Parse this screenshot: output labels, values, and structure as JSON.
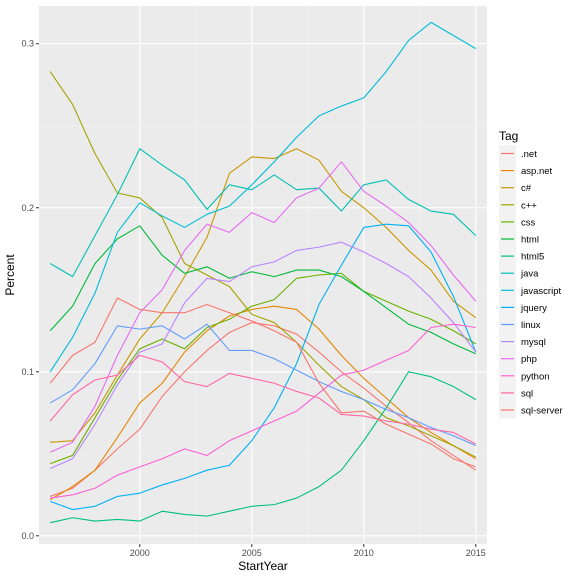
{
  "chart_data": {
    "type": "line",
    "xlabel": "StartYear",
    "ylabel": "Percent",
    "legend_title": "Tag",
    "legend_position": "right",
    "grid": true,
    "background": "#EBEBEB",
    "xlim": [
      1995.5,
      2015.5
    ],
    "ylim": [
      -0.005,
      0.323
    ],
    "x_ticks": [
      2000,
      2005,
      2010,
      2015
    ],
    "x_tick_labels": [
      "2000",
      "2005",
      "2010",
      "2015"
    ],
    "y_ticks": [
      0.0,
      0.1,
      0.2,
      0.3
    ],
    "y_tick_labels": [
      "0.0",
      "0.1",
      "0.2",
      "0.3"
    ],
    "x": [
      1996,
      1997,
      1998,
      1999,
      2000,
      2001,
      2002,
      2003,
      2004,
      2005,
      2006,
      2007,
      2008,
      2009,
      2010,
      2011,
      2012,
      2013,
      2014,
      2015
    ],
    "series": [
      {
        "name": ".net",
        "color": "#F8766D",
        "values": [
          0.024,
          0.029,
          0.04,
          0.053,
          0.065,
          0.085,
          0.1,
          0.113,
          0.124,
          0.13,
          0.128,
          0.123,
          0.112,
          0.1,
          0.09,
          0.079,
          0.069,
          0.058,
          0.049,
          0.04
        ]
      },
      {
        "name": "asp.net",
        "color": "#E58700",
        "values": [
          0.022,
          0.03,
          0.04,
          0.06,
          0.081,
          0.093,
          0.112,
          0.125,
          0.134,
          0.138,
          0.14,
          0.138,
          0.126,
          0.11,
          0.096,
          0.084,
          0.072,
          0.063,
          0.055,
          0.047
        ]
      },
      {
        "name": "c#",
        "color": "#C99800",
        "values": [
          0.057,
          0.058,
          0.075,
          0.098,
          0.12,
          0.136,
          0.158,
          0.182,
          0.221,
          0.231,
          0.23,
          0.236,
          0.229,
          0.21,
          0.2,
          0.188,
          0.174,
          0.162,
          0.143,
          0.133
        ]
      },
      {
        "name": "c++",
        "color": "#A3A500",
        "values": [
          0.283,
          0.263,
          0.233,
          0.209,
          0.206,
          0.194,
          0.166,
          0.159,
          0.152,
          0.135,
          0.13,
          0.118,
          0.104,
          0.091,
          0.083,
          0.072,
          0.067,
          0.061,
          0.055,
          0.048
        ]
      },
      {
        "name": "css",
        "color": "#6BB100",
        "values": [
          0.044,
          0.049,
          0.072,
          0.095,
          0.114,
          0.12,
          0.114,
          0.127,
          0.132,
          0.14,
          0.144,
          0.157,
          0.159,
          0.16,
          0.149,
          0.143,
          0.137,
          0.132,
          0.125,
          0.117
        ]
      },
      {
        "name": "html",
        "color": "#00BA38",
        "values": [
          0.125,
          0.14,
          0.166,
          0.181,
          0.189,
          0.171,
          0.16,
          0.164,
          0.157,
          0.161,
          0.158,
          0.162,
          0.162,
          0.158,
          0.149,
          0.139,
          0.129,
          0.124,
          0.117,
          0.111
        ]
      },
      {
        "name": "html5",
        "color": "#00BF7D",
        "values": [
          0.008,
          0.011,
          0.009,
          0.01,
          0.009,
          0.015,
          0.013,
          0.012,
          0.015,
          0.018,
          0.019,
          0.023,
          0.03,
          0.04,
          0.058,
          0.078,
          0.1,
          0.097,
          0.091,
          0.083
        ]
      },
      {
        "name": "java",
        "color": "#00C0B4",
        "values": [
          0.166,
          0.158,
          0.183,
          0.208,
          0.236,
          0.226,
          0.217,
          0.199,
          0.214,
          0.211,
          0.22,
          0.211,
          0.212,
          0.198,
          0.214,
          0.217,
          0.205,
          0.198,
          0.196,
          0.183
        ]
      },
      {
        "name": "javascript",
        "color": "#00BCD8",
        "values": [
          0.1,
          0.121,
          0.148,
          0.185,
          0.203,
          0.195,
          0.188,
          0.196,
          0.201,
          0.214,
          0.228,
          0.243,
          0.256,
          0.262,
          0.267,
          0.283,
          0.302,
          0.313,
          0.305,
          0.297
        ]
      },
      {
        "name": "jquery",
        "color": "#00B0F6",
        "values": [
          0.021,
          0.016,
          0.018,
          0.024,
          0.026,
          0.031,
          0.035,
          0.04,
          0.043,
          0.058,
          0.078,
          0.105,
          0.141,
          0.165,
          0.188,
          0.19,
          0.189,
          0.173,
          0.146,
          0.112
        ]
      },
      {
        "name": "linux",
        "color": "#619CFF",
        "values": [
          0.081,
          0.089,
          0.105,
          0.128,
          0.126,
          0.128,
          0.12,
          0.129,
          0.113,
          0.113,
          0.108,
          0.101,
          0.094,
          0.088,
          0.083,
          0.077,
          0.072,
          0.066,
          0.061,
          0.055
        ]
      },
      {
        "name": "mysql",
        "color": "#B983FF",
        "values": [
          0.041,
          0.047,
          0.068,
          0.092,
          0.112,
          0.117,
          0.142,
          0.157,
          0.155,
          0.164,
          0.167,
          0.174,
          0.176,
          0.179,
          0.173,
          0.166,
          0.158,
          0.145,
          0.13,
          0.112
        ]
      },
      {
        "name": "php",
        "color": "#E76BF3",
        "values": [
          0.051,
          0.057,
          0.079,
          0.11,
          0.136,
          0.15,
          0.174,
          0.19,
          0.185,
          0.197,
          0.191,
          0.206,
          0.212,
          0.228,
          0.21,
          0.201,
          0.191,
          0.177,
          0.159,
          0.143
        ]
      },
      {
        "name": "python",
        "color": "#FD61D1",
        "values": [
          0.023,
          0.025,
          0.029,
          0.037,
          0.042,
          0.047,
          0.053,
          0.049,
          0.058,
          0.064,
          0.07,
          0.076,
          0.087,
          0.098,
          0.101,
          0.107,
          0.113,
          0.127,
          0.129,
          0.127
        ]
      },
      {
        "name": "sql",
        "color": "#FF67A4",
        "values": [
          0.07,
          0.086,
          0.095,
          0.098,
          0.11,
          0.106,
          0.094,
          0.091,
          0.099,
          0.096,
          0.093,
          0.088,
          0.084,
          0.074,
          0.073,
          0.07,
          0.068,
          0.065,
          0.063,
          0.056
        ]
      },
      {
        "name": "sql-server",
        "color": "#F8766D",
        "values": [
          0.093,
          0.11,
          0.118,
          0.145,
          0.138,
          0.136,
          0.136,
          0.141,
          0.136,
          0.131,
          0.125,
          0.118,
          0.093,
          0.075,
          0.076,
          0.068,
          0.062,
          0.056,
          0.047,
          0.042
        ]
      }
    ]
  }
}
